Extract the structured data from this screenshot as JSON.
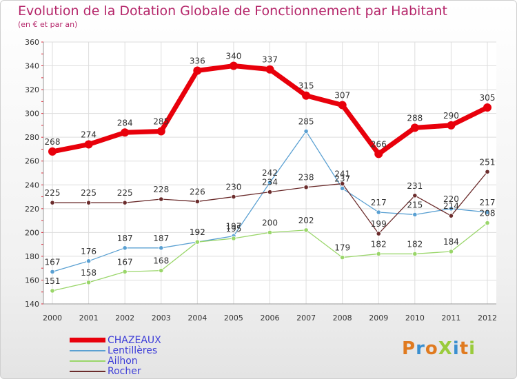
{
  "title": "Evolution de la Dotation Globale de Fonctionnement par Habitant",
  "subtitle": "(en € et par an)",
  "logo": {
    "text": "ProXiti"
  },
  "colors": {
    "title": "#b5266a",
    "legend_text": "#3d3dd8",
    "chazeaux": "#e8000b",
    "lentilleres": "#5aa0d2",
    "ailhon": "#9ad66a",
    "rocher": "#6b2c2c"
  },
  "chart_data": {
    "type": "line",
    "title": "Evolution de la Dotation Globale de Fonctionnement par Habitant",
    "subtitle": "(en € et par an)",
    "xlabel": "",
    "ylabel": "",
    "ylim": [
      140,
      360
    ],
    "yticks": [
      140,
      160,
      180,
      200,
      220,
      240,
      260,
      280,
      300,
      320,
      340,
      360
    ],
    "x": [
      "2000",
      "2001",
      "2002",
      "2003",
      "2004",
      "2005",
      "2006",
      "2007",
      "2008",
      "2009",
      "2010",
      "2011",
      "2012"
    ],
    "grid": true,
    "legend_position": "bottom-left",
    "series": [
      {
        "name": "CHAZEAUX",
        "values": [
          268,
          274,
          284,
          285,
          336,
          340,
          337,
          315,
          307,
          266,
          288,
          290,
          305
        ]
      },
      {
        "name": "Lentillères",
        "values": [
          167,
          176,
          187,
          187,
          192,
          197,
          242,
          285,
          237,
          217,
          215,
          220,
          217
        ]
      },
      {
        "name": "Ailhon",
        "values": [
          151,
          158,
          167,
          168,
          192,
          195,
          200,
          202,
          179,
          182,
          182,
          184,
          208
        ]
      },
      {
        "name": "Rocher",
        "values": [
          225,
          225,
          225,
          228,
          226,
          230,
          234,
          238,
          241,
          199,
          231,
          214,
          251
        ]
      }
    ]
  }
}
